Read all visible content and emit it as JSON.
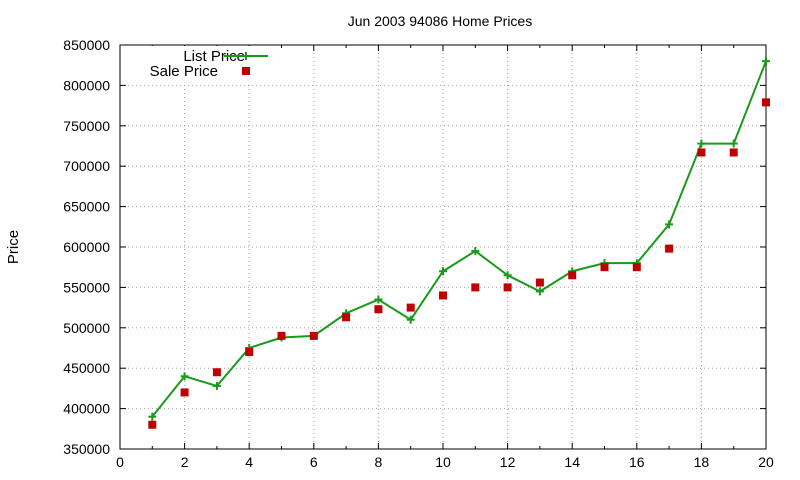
{
  "chart_data": {
    "type": "line",
    "title": "Jun 2003 94086 Home Prices",
    "xlabel": "",
    "ylabel": "Price",
    "xlim": [
      0,
      20
    ],
    "ylim": [
      350000,
      850000
    ],
    "xticks": [
      0,
      2,
      4,
      6,
      8,
      10,
      12,
      14,
      16,
      18,
      20
    ],
    "yticks": [
      350000,
      400000,
      450000,
      500000,
      550000,
      600000,
      650000,
      700000,
      750000,
      800000,
      850000
    ],
    "grid": true,
    "legend_position": "top-left",
    "series": [
      {
        "name": "List Price",
        "style": "line-plus",
        "color": "#1a9a1a",
        "x": [
          1,
          2,
          3,
          4,
          5,
          6,
          7,
          8,
          9,
          10,
          11,
          12,
          13,
          14,
          15,
          16,
          17,
          18,
          19,
          20
        ],
        "values": [
          390000,
          440000,
          428000,
          475000,
          488000,
          490000,
          518000,
          535000,
          510000,
          570000,
          595000,
          565000,
          545000,
          570000,
          580000,
          580000,
          628000,
          728000,
          728000,
          830000
        ]
      },
      {
        "name": "Sale Price",
        "style": "square-marker",
        "color": "#c00000",
        "x": [
          1,
          2,
          3,
          4,
          5,
          6,
          7,
          8,
          9,
          10,
          11,
          12,
          13,
          14,
          15,
          16,
          17,
          18,
          19,
          20
        ],
        "values": [
          380000,
          420000,
          445000,
          470000,
          490000,
          490000,
          513000,
          523000,
          525000,
          540000,
          550000,
          550000,
          556000,
          565000,
          575000,
          575000,
          598000,
          717000,
          717000,
          779000
        ]
      }
    ]
  }
}
